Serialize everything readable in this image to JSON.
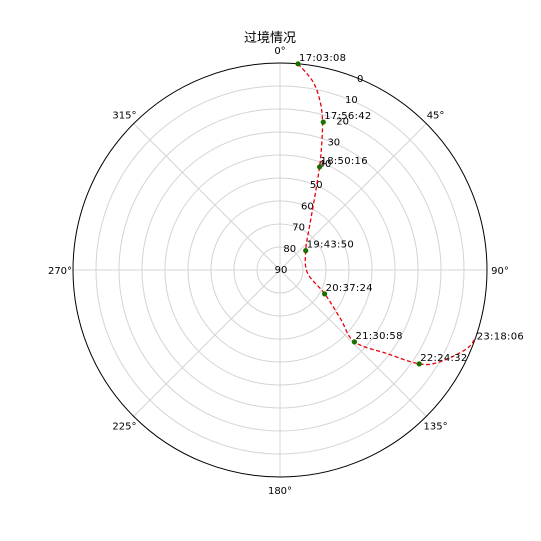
{
  "chart_data": {
    "type": "scatter",
    "subtype": "polar-skyplot",
    "title": "过境情况",
    "theta_zero": "top",
    "theta_direction": "clockwise",
    "theta_tick_labels": [
      "0°",
      "45°",
      "90°",
      "135°",
      "180°",
      "225°",
      "270°",
      "315°"
    ],
    "theta_tick_values": [
      0,
      45,
      90,
      135,
      180,
      225,
      270,
      315
    ],
    "r_tick_labels": [
      "0",
      "10",
      "20",
      "30",
      "40",
      "50",
      "60",
      "70",
      "80",
      "90"
    ],
    "r_tick_values": [
      0,
      10,
      20,
      30,
      40,
      50,
      60,
      70,
      80,
      90
    ],
    "r_label_angle_deg": 22.5,
    "rlim": [
      0,
      90
    ],
    "r_meaning": "elevation (90 at center, 0 at edge)",
    "grid": true,
    "track_color": "#e8000b",
    "marker_color": "#1a6e00",
    "label_color": "#000000",
    "track": [
      {
        "az": 5.0,
        "el": 0
      },
      {
        "az": 10.0,
        "el": 7
      },
      {
        "az": 13.5,
        "el": 15
      },
      {
        "az": 16.0,
        "el": 23
      },
      {
        "az": 18.5,
        "el": 33
      },
      {
        "az": 21.0,
        "el": 42
      },
      {
        "az": 26.0,
        "el": 56
      },
      {
        "az": 34.0,
        "el": 67
      },
      {
        "az": 53.0,
        "el": 76
      },
      {
        "az": 96.0,
        "el": 78
      },
      {
        "az": 118.0,
        "el": 68
      },
      {
        "az": 129.0,
        "el": 56
      },
      {
        "az": 134.0,
        "el": 45
      },
      {
        "az": 128.0,
        "el": 31
      },
      {
        "az": 124.0,
        "el": 17
      },
      {
        "az": 120.0,
        "el": 10
      },
      {
        "az": 113.0,
        "el": 2
      },
      {
        "az": 109.0,
        "el": 0
      }
    ],
    "points": [
      {
        "time": "17:03:08",
        "az": 5.0,
        "el": 0
      },
      {
        "time": "17:56:42",
        "az": 16.3,
        "el": 23
      },
      {
        "time": "18:50:16",
        "az": 21.0,
        "el": 42
      },
      {
        "time": "19:43:50",
        "az": 53.0,
        "el": 76
      },
      {
        "time": "20:37:24",
        "az": 118.2,
        "el": 68
      },
      {
        "time": "21:30:58",
        "az": 134.0,
        "el": 45
      },
      {
        "time": "22:24:32",
        "az": 124.0,
        "el": 17
      }
    ],
    "end_label": {
      "time": "23:18:06",
      "az": 109.0,
      "el": 0
    }
  }
}
